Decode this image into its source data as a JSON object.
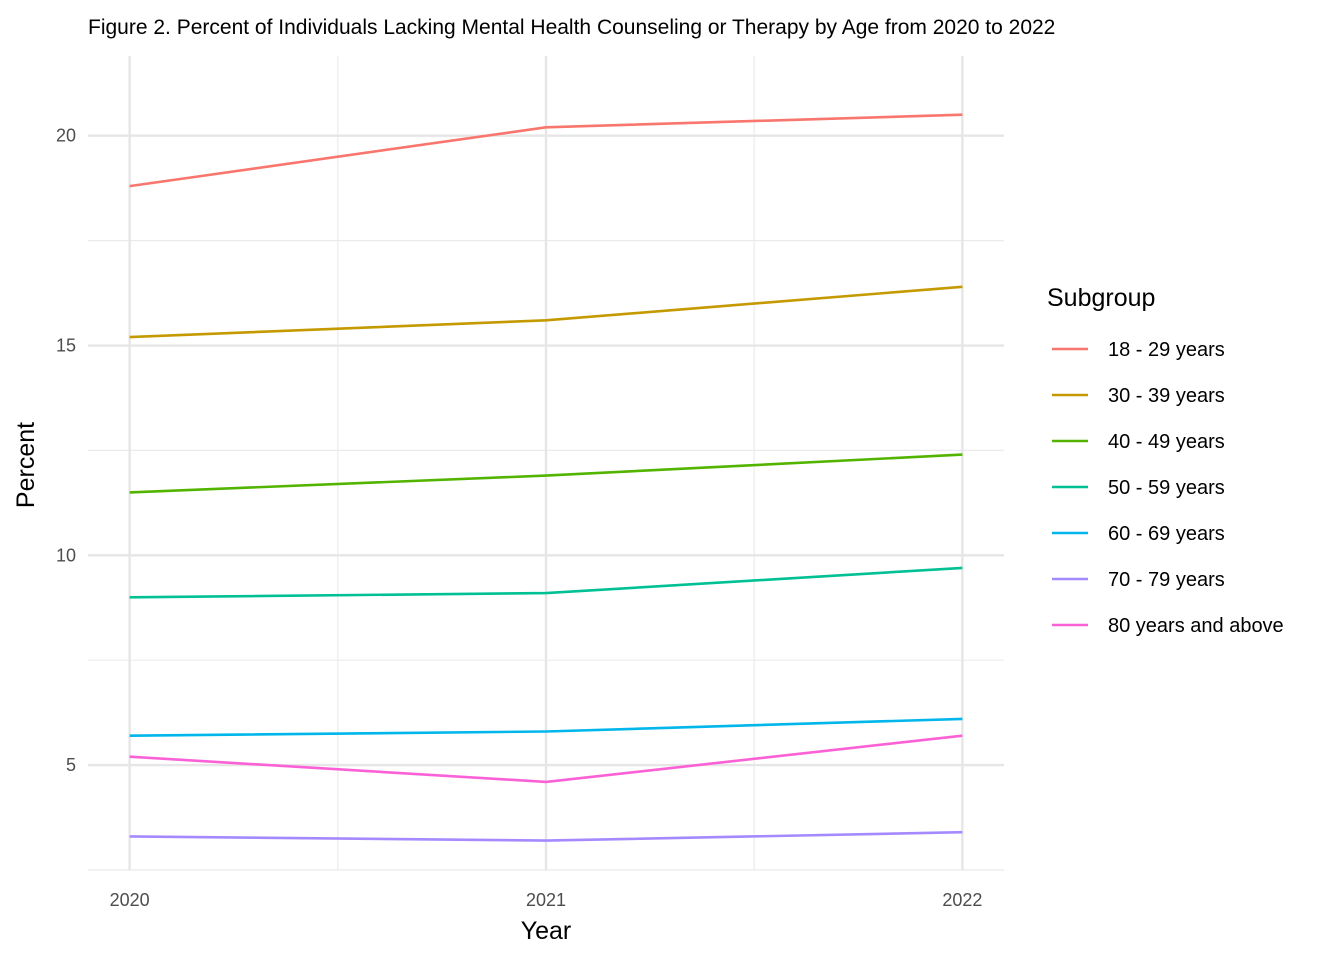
{
  "chart_data": {
    "type": "line",
    "title": "Figure 2. Percent of Individuals Lacking Mental Health Counseling or Therapy by Age from 2020 to 2022",
    "xlabel": "Year",
    "ylabel": "Percent",
    "x": [
      2020,
      2021,
      2022
    ],
    "x_tick_labels": [
      "2020",
      "2021",
      "2022"
    ],
    "xlim": [
      2019.9,
      2022.1
    ],
    "y_ticks": [
      5,
      10,
      15,
      20
    ],
    "y_tick_labels": [
      "5",
      "10",
      "15",
      "20"
    ],
    "ylim": [
      2.5,
      21.9
    ],
    "grid": true,
    "legend_title": "Subgroup",
    "legend_position": "right",
    "series": [
      {
        "name": "18 - 29 years",
        "color": "#F8766D",
        "values": [
          18.8,
          20.2,
          20.5
        ]
      },
      {
        "name": "30 - 39 years",
        "color": "#C49A00",
        "values": [
          15.2,
          15.6,
          16.4
        ]
      },
      {
        "name": "40 - 49 years",
        "color": "#53B400",
        "values": [
          11.5,
          11.9,
          12.4
        ]
      },
      {
        "name": "50 - 59 years",
        "color": "#00C094",
        "values": [
          9.0,
          9.1,
          9.7
        ]
      },
      {
        "name": "60 - 69 years",
        "color": "#00B6EB",
        "values": [
          5.7,
          5.8,
          6.1
        ]
      },
      {
        "name": "70 - 79 years",
        "color": "#A58AFF",
        "values": [
          3.3,
          3.2,
          3.4
        ]
      },
      {
        "name": "80 years and above",
        "color": "#FB61D7",
        "values": [
          5.2,
          4.6,
          5.7
        ]
      }
    ]
  }
}
